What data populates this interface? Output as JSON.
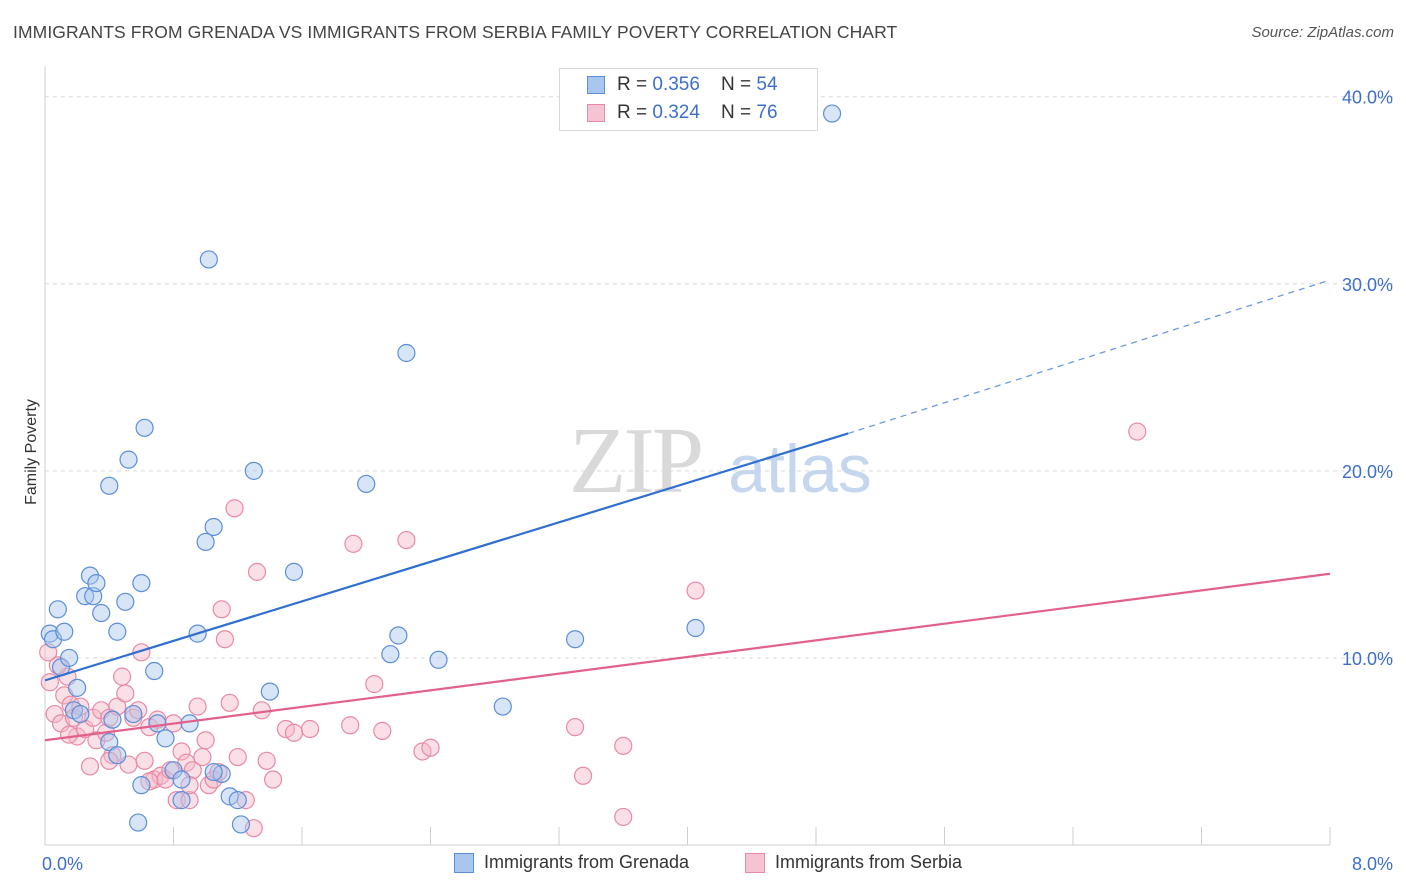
{
  "title": "IMMIGRANTS FROM GRENADA VS IMMIGRANTS FROM SERBIA FAMILY POVERTY CORRELATION CHART",
  "source": "Source: ZipAtlas.com",
  "watermark": {
    "zip": "ZIP",
    "atlas": "atlas"
  },
  "legend": {
    "grenada": {
      "r_label": "R = ",
      "r_value": "0.356",
      "n_label": "N = ",
      "n_value": "54"
    },
    "serbia": {
      "r_label": "R = ",
      "r_value": "0.324",
      "n_label": "N = ",
      "n_value": "76"
    }
  },
  "bottom_legend": {
    "grenada": "Immigrants from Grenada",
    "serbia": "Immigrants from Serbia"
  },
  "colors": {
    "grenada_fill": "#a8c6ee",
    "grenada_stroke": "#5b8fd8",
    "grenada_line": "#2e6fd0",
    "serbia_fill": "#f5b8c8",
    "serbia_stroke": "#e88aa6",
    "serbia_line": "#e2608c",
    "axis_text": "#3e6fcb",
    "grid": "#d9d9d9"
  },
  "chart_data": {
    "type": "scatter",
    "title": "IMMIGRANTS FROM GRENADA VS IMMIGRANTS FROM SERBIA FAMILY POVERTY CORRELATION CHART",
    "xlabel": "",
    "ylabel": "Family Poverty",
    "xlim": [
      0,
      8
    ],
    "ylim": [
      0,
      41
    ],
    "x_tick_labels": [
      "0.0%",
      "8.0%"
    ],
    "y_ticks": [
      10,
      20,
      30,
      40
    ],
    "y_tick_labels": [
      "10.0%",
      "20.0%",
      "30.0%",
      "40.0%"
    ],
    "series": [
      {
        "name": "Immigrants from Grenada",
        "R": 0.356,
        "N": 54,
        "trend": {
          "x0": 0,
          "y0": 8.8,
          "x1": 5.0,
          "y1": 22.0,
          "dash_to_x": 8.0,
          "dash_to_y": 30.2
        },
        "points": [
          [
            0.03,
            11.3
          ],
          [
            0.05,
            11.0
          ],
          [
            0.08,
            12.6
          ],
          [
            0.1,
            9.5
          ],
          [
            0.12,
            11.4
          ],
          [
            0.15,
            10.0
          ],
          [
            0.18,
            7.2
          ],
          [
            0.22,
            7.0
          ],
          [
            0.25,
            13.3
          ],
          [
            0.28,
            14.4
          ],
          [
            0.3,
            13.3
          ],
          [
            0.32,
            14.0
          ],
          [
            0.35,
            12.4
          ],
          [
            0.4,
            19.2
          ],
          [
            0.45,
            11.4
          ],
          [
            0.5,
            13.0
          ],
          [
            0.52,
            20.6
          ],
          [
            0.6,
            14.0
          ],
          [
            0.62,
            22.3
          ],
          [
            0.68,
            9.3
          ],
          [
            0.7,
            6.5
          ],
          [
            0.75,
            5.7
          ],
          [
            0.8,
            4.0
          ],
          [
            0.85,
            3.5
          ],
          [
            0.9,
            6.5
          ],
          [
            0.95,
            11.3
          ],
          [
            1.0,
            16.2
          ],
          [
            1.02,
            31.3
          ],
          [
            1.05,
            17.0
          ],
          [
            1.1,
            3.8
          ],
          [
            1.15,
            2.6
          ],
          [
            1.2,
            2.4
          ],
          [
            1.22,
            1.1
          ],
          [
            1.3,
            20.0
          ],
          [
            1.4,
            8.2
          ],
          [
            1.55,
            14.6
          ],
          [
            2.0,
            19.3
          ],
          [
            2.15,
            10.2
          ],
          [
            2.2,
            11.2
          ],
          [
            2.25,
            26.3
          ],
          [
            2.45,
            9.9
          ],
          [
            2.85,
            7.4
          ],
          [
            3.3,
            11.0
          ],
          [
            4.05,
            11.6
          ],
          [
            4.9,
            39.1
          ],
          [
            0.4,
            5.5
          ],
          [
            0.45,
            4.8
          ],
          [
            0.55,
            7.0
          ],
          [
            0.6,
            3.2
          ],
          [
            0.58,
            1.2
          ],
          [
            0.85,
            2.4
          ],
          [
            1.05,
            3.9
          ],
          [
            0.42,
            6.7
          ],
          [
            0.2,
            8.4
          ]
        ]
      },
      {
        "name": "Immigrants from Serbia",
        "R": 0.324,
        "N": 76,
        "trend": {
          "x0": 0,
          "y0": 5.6,
          "x1": 8.0,
          "y1": 14.5
        },
        "points": [
          [
            0.02,
            10.3
          ],
          [
            0.06,
            7.0
          ],
          [
            0.1,
            6.5
          ],
          [
            0.12,
            8.0
          ],
          [
            0.14,
            9.0
          ],
          [
            0.16,
            7.5
          ],
          [
            0.18,
            6.8
          ],
          [
            0.2,
            5.8
          ],
          [
            0.22,
            7.4
          ],
          [
            0.25,
            6.2
          ],
          [
            0.28,
            4.2
          ],
          [
            0.3,
            6.8
          ],
          [
            0.32,
            5.6
          ],
          [
            0.35,
            7.2
          ],
          [
            0.38,
            6.0
          ],
          [
            0.4,
            6.8
          ],
          [
            0.42,
            4.8
          ],
          [
            0.45,
            7.4
          ],
          [
            0.48,
            9.0
          ],
          [
            0.5,
            8.1
          ],
          [
            0.52,
            4.3
          ],
          [
            0.55,
            6.8
          ],
          [
            0.58,
            7.2
          ],
          [
            0.6,
            10.3
          ],
          [
            0.62,
            4.5
          ],
          [
            0.65,
            6.3
          ],
          [
            0.68,
            3.5
          ],
          [
            0.7,
            6.7
          ],
          [
            0.72,
            3.7
          ],
          [
            0.75,
            3.5
          ],
          [
            0.78,
            4.0
          ],
          [
            0.8,
            6.5
          ],
          [
            0.82,
            2.4
          ],
          [
            0.85,
            5.0
          ],
          [
            0.88,
            4.4
          ],
          [
            0.9,
            2.4
          ],
          [
            0.92,
            4.0
          ],
          [
            0.95,
            7.4
          ],
          [
            0.98,
            4.7
          ],
          [
            1.0,
            5.6
          ],
          [
            1.02,
            3.2
          ],
          [
            1.05,
            3.5
          ],
          [
            1.08,
            3.9
          ],
          [
            1.1,
            12.6
          ],
          [
            1.12,
            11.0
          ],
          [
            1.15,
            7.6
          ],
          [
            1.18,
            18.0
          ],
          [
            1.2,
            4.7
          ],
          [
            1.25,
            2.4
          ],
          [
            1.3,
            0.9
          ],
          [
            1.32,
            14.6
          ],
          [
            1.35,
            7.2
          ],
          [
            1.38,
            4.5
          ],
          [
            1.42,
            3.5
          ],
          [
            1.5,
            6.2
          ],
          [
            1.55,
            6.0
          ],
          [
            1.65,
            6.2
          ],
          [
            1.9,
            6.4
          ],
          [
            1.92,
            16.1
          ],
          [
            2.05,
            8.6
          ],
          [
            2.1,
            6.1
          ],
          [
            2.25,
            16.3
          ],
          [
            2.35,
            5.0
          ],
          [
            2.4,
            5.2
          ],
          [
            3.3,
            6.3
          ],
          [
            3.35,
            3.7
          ],
          [
            3.6,
            5.3
          ],
          [
            3.6,
            1.5
          ],
          [
            4.05,
            13.6
          ],
          [
            6.8,
            22.1
          ],
          [
            0.03,
            8.7
          ],
          [
            0.08,
            9.6
          ],
          [
            0.15,
            5.9
          ],
          [
            0.4,
            4.5
          ],
          [
            0.65,
            3.4
          ],
          [
            0.9,
            3.2
          ]
        ]
      }
    ]
  }
}
